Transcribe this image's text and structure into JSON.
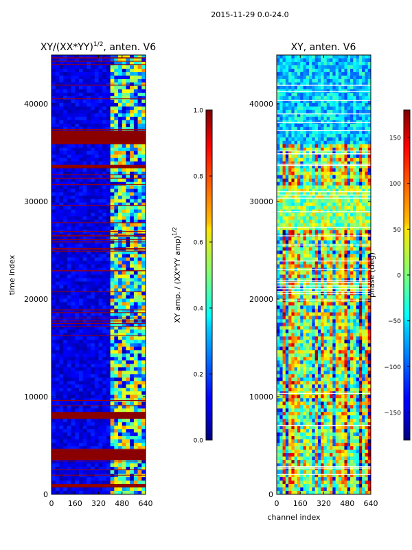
{
  "suptitle": "2015-11-29 0.0-24.0",
  "chart_data": [
    {
      "type": "heatmap",
      "title_main": "XY/(XX*YY)",
      "title_exp": "1/2",
      "title_suffix": ", anten. V6",
      "xlabel": "",
      "ylabel": "time index",
      "xlim": [
        0,
        640
      ],
      "ylim": [
        0,
        45000
      ],
      "xticks": [
        "0",
        "160",
        "320",
        "480",
        "640"
      ],
      "yticks": [
        "0",
        "10000",
        "20000",
        "30000",
        "40000"
      ],
      "colorbar": {
        "label_main": "XY amp. / (XX*YY amp)",
        "label_exp": "1/2",
        "range": [
          0.0,
          1.0
        ],
        "ticks": [
          "0.0",
          "0.2",
          "0.4",
          "0.6",
          "0.8",
          "1.0"
        ],
        "colormap": "jet"
      },
      "saturated_bands": [
        [
          800,
          900
        ],
        [
          3400,
          4700
        ],
        [
          7900,
          8400
        ],
        [
          33400,
          33800
        ],
        [
          35800,
          37100
        ]
      ],
      "active_channel_range": [
        400,
        640
      ]
    },
    {
      "type": "heatmap",
      "title": "XY, anten. V6",
      "xlabel": "channel index",
      "ylabel": "",
      "xlim": [
        0,
        640
      ],
      "ylim": [
        0,
        45000
      ],
      "xticks": [
        "0",
        "160",
        "320",
        "480",
        "640"
      ],
      "yticks": [
        "0",
        "10000",
        "20000",
        "30000",
        "40000"
      ],
      "colorbar": {
        "label": "phase (deg)",
        "range": [
          -180,
          180
        ],
        "ticks": [
          "−150",
          "−100",
          "−50",
          "0",
          "50",
          "100",
          "150"
        ],
        "colormap": "jet"
      }
    }
  ]
}
